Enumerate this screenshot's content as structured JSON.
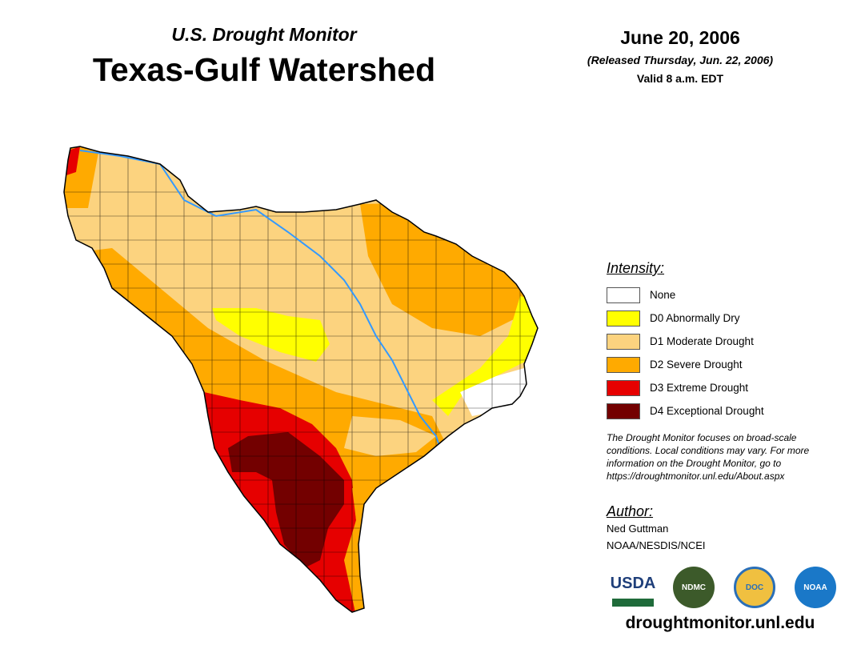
{
  "header": {
    "subtitle": "U.S. Drought Monitor",
    "title": "Texas-Gulf Watershed",
    "date": "June 20, 2006",
    "released": "(Released Thursday, Jun. 22, 2006)",
    "valid": "Valid 8 a.m. EDT"
  },
  "legend": {
    "heading": "Intensity:",
    "items": [
      {
        "label": "None",
        "color": "#ffffff"
      },
      {
        "label": "D0 Abnormally Dry",
        "color": "#ffff00"
      },
      {
        "label": "D1 Moderate Drought",
        "color": "#fcd37f"
      },
      {
        "label": "D2 Severe Drought",
        "color": "#ffaa00"
      },
      {
        "label": "D3 Extreme Drought",
        "color": "#e60000"
      },
      {
        "label": "D4 Exceptional Drought",
        "color": "#730000"
      }
    ]
  },
  "note": "The Drought Monitor focuses on broad-scale conditions. Local conditions may vary. For more information on the Drought Monitor, go to https://droughtmonitor.unl.edu/About.aspx",
  "author": {
    "heading": "Author:",
    "name": "Ned Guttman",
    "org": "NOAA/NESDIS/NCEI"
  },
  "logos": [
    {
      "name": "USDA",
      "color": "#1f3f7a"
    },
    {
      "name": "NDMC",
      "color": "#3c5a2a"
    },
    {
      "name": "DOC",
      "color": "#2a6fb8"
    },
    {
      "name": "NOAA",
      "color": "#1a78c8"
    }
  ],
  "url": "droughtmonitor.unl.edu",
  "colors": {
    "river": "#3399ff",
    "border": "#000000"
  }
}
